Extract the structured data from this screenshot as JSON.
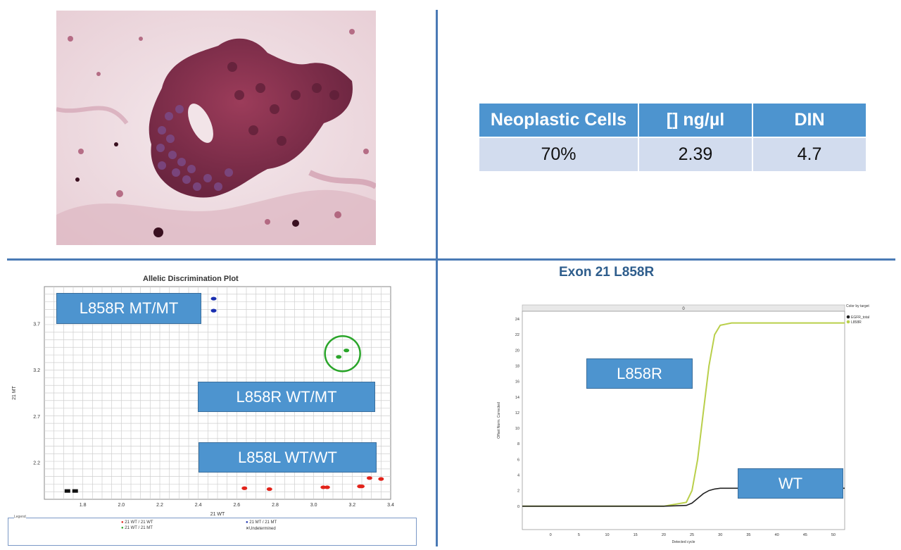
{
  "table": {
    "headers": [
      "Neoplastic Cells",
      "[] ng/µl",
      "DIN"
    ],
    "values": [
      "70%",
      "2.39",
      "4.7"
    ]
  },
  "allelic_plot": {
    "title": "Allelic Discrimination Plot",
    "xlabel": "21 WT",
    "ylabel": "21 MT",
    "callouts": {
      "mt_mt": "L858R MT/MT",
      "wt_mt": "L858R WT/MT",
      "wt_wt": "L858L WT/WT"
    },
    "legend": {
      "title": "Legend",
      "items": [
        "21 WT / 21 WT",
        "21 WT / 21 MT",
        "21 MT / 21 MT",
        "Undetermined"
      ]
    }
  },
  "amp_plot": {
    "title": "Exon 21 L858R",
    "header_label": "0",
    "ylabel": "Offset Norm. Corrected",
    "xlabel": "Detected cycle",
    "color_by_label": "Color by target",
    "legend_items": [
      "EGFR_total",
      "L858R"
    ],
    "callouts": {
      "mutant": "L858R",
      "wt": "WT"
    }
  },
  "colors": {
    "accent": "#4d94cf",
    "divider": "#4a7ab5",
    "cell_fill": "#d2dcee"
  },
  "chart_data": [
    {
      "type": "scatter",
      "title": "Allelic Discrimination Plot",
      "xlabel": "21 WT",
      "ylabel": "21 MT",
      "xlim": [
        1.6,
        3.4
      ],
      "ylim": [
        1.8,
        4.1
      ],
      "x_ticks": [
        1.8,
        2.0,
        2.2,
        2.4,
        2.6,
        2.8,
        3.0,
        3.2,
        3.4
      ],
      "y_ticks": [
        2.2,
        2.7,
        3.2,
        3.7
      ],
      "grid": true,
      "series": [
        {
          "name": "21 WT / 21 WT",
          "color": "#e2231a",
          "points": [
            [
              2.64,
              1.92
            ],
            [
              2.77,
              1.91
            ],
            [
              3.05,
              1.93
            ],
            [
              3.07,
              1.93
            ],
            [
              3.24,
              1.94
            ],
            [
              3.25,
              1.94
            ],
            [
              3.29,
              2.03
            ],
            [
              3.35,
              2.02
            ]
          ]
        },
        {
          "name": "21 WT / 21 MT",
          "color": "#2aa52a",
          "points": [
            [
              3.13,
              3.34
            ],
            [
              3.17,
              3.41
            ]
          ]
        },
        {
          "name": "21 MT / 21 MT",
          "color": "#1a2fb0",
          "points": [
            [
              2.48,
              3.97
            ],
            [
              2.48,
              3.84
            ]
          ]
        },
        {
          "name": "Undetermined",
          "color": "#111111",
          "points": [
            [
              1.72,
              1.89
            ],
            [
              1.76,
              1.89
            ]
          ]
        }
      ]
    },
    {
      "type": "line",
      "title": "Exon 21 L858R",
      "xlabel": "Detected cycle",
      "ylabel": "Offset Norm. Corrected",
      "xlim": [
        -5,
        52
      ],
      "ylim": [
        -3,
        25
      ],
      "x_ticks": [
        0,
        5,
        10,
        15,
        20,
        25,
        30,
        35,
        40,
        45,
        50
      ],
      "y_ticks": [
        0,
        2,
        4,
        6,
        8,
        10,
        12,
        14,
        16,
        18,
        20,
        22,
        24
      ],
      "series": [
        {
          "name": "L858R",
          "color": "#b9cf4a",
          "x": [
            -5,
            20,
            24,
            25,
            26,
            27,
            28,
            29,
            30,
            32,
            52
          ],
          "y": [
            0,
            0,
            0.5,
            2,
            6,
            12,
            18,
            22,
            23.2,
            23.5,
            23.5
          ]
        },
        {
          "name": "EGFR_total",
          "color": "#222222",
          "x": [
            -5,
            20,
            24,
            25,
            26,
            27,
            28,
            29,
            30,
            32,
            52
          ],
          "y": [
            0,
            0,
            0.1,
            0.4,
            1.0,
            1.6,
            2.0,
            2.2,
            2.3,
            2.3,
            2.3
          ]
        }
      ]
    }
  ]
}
